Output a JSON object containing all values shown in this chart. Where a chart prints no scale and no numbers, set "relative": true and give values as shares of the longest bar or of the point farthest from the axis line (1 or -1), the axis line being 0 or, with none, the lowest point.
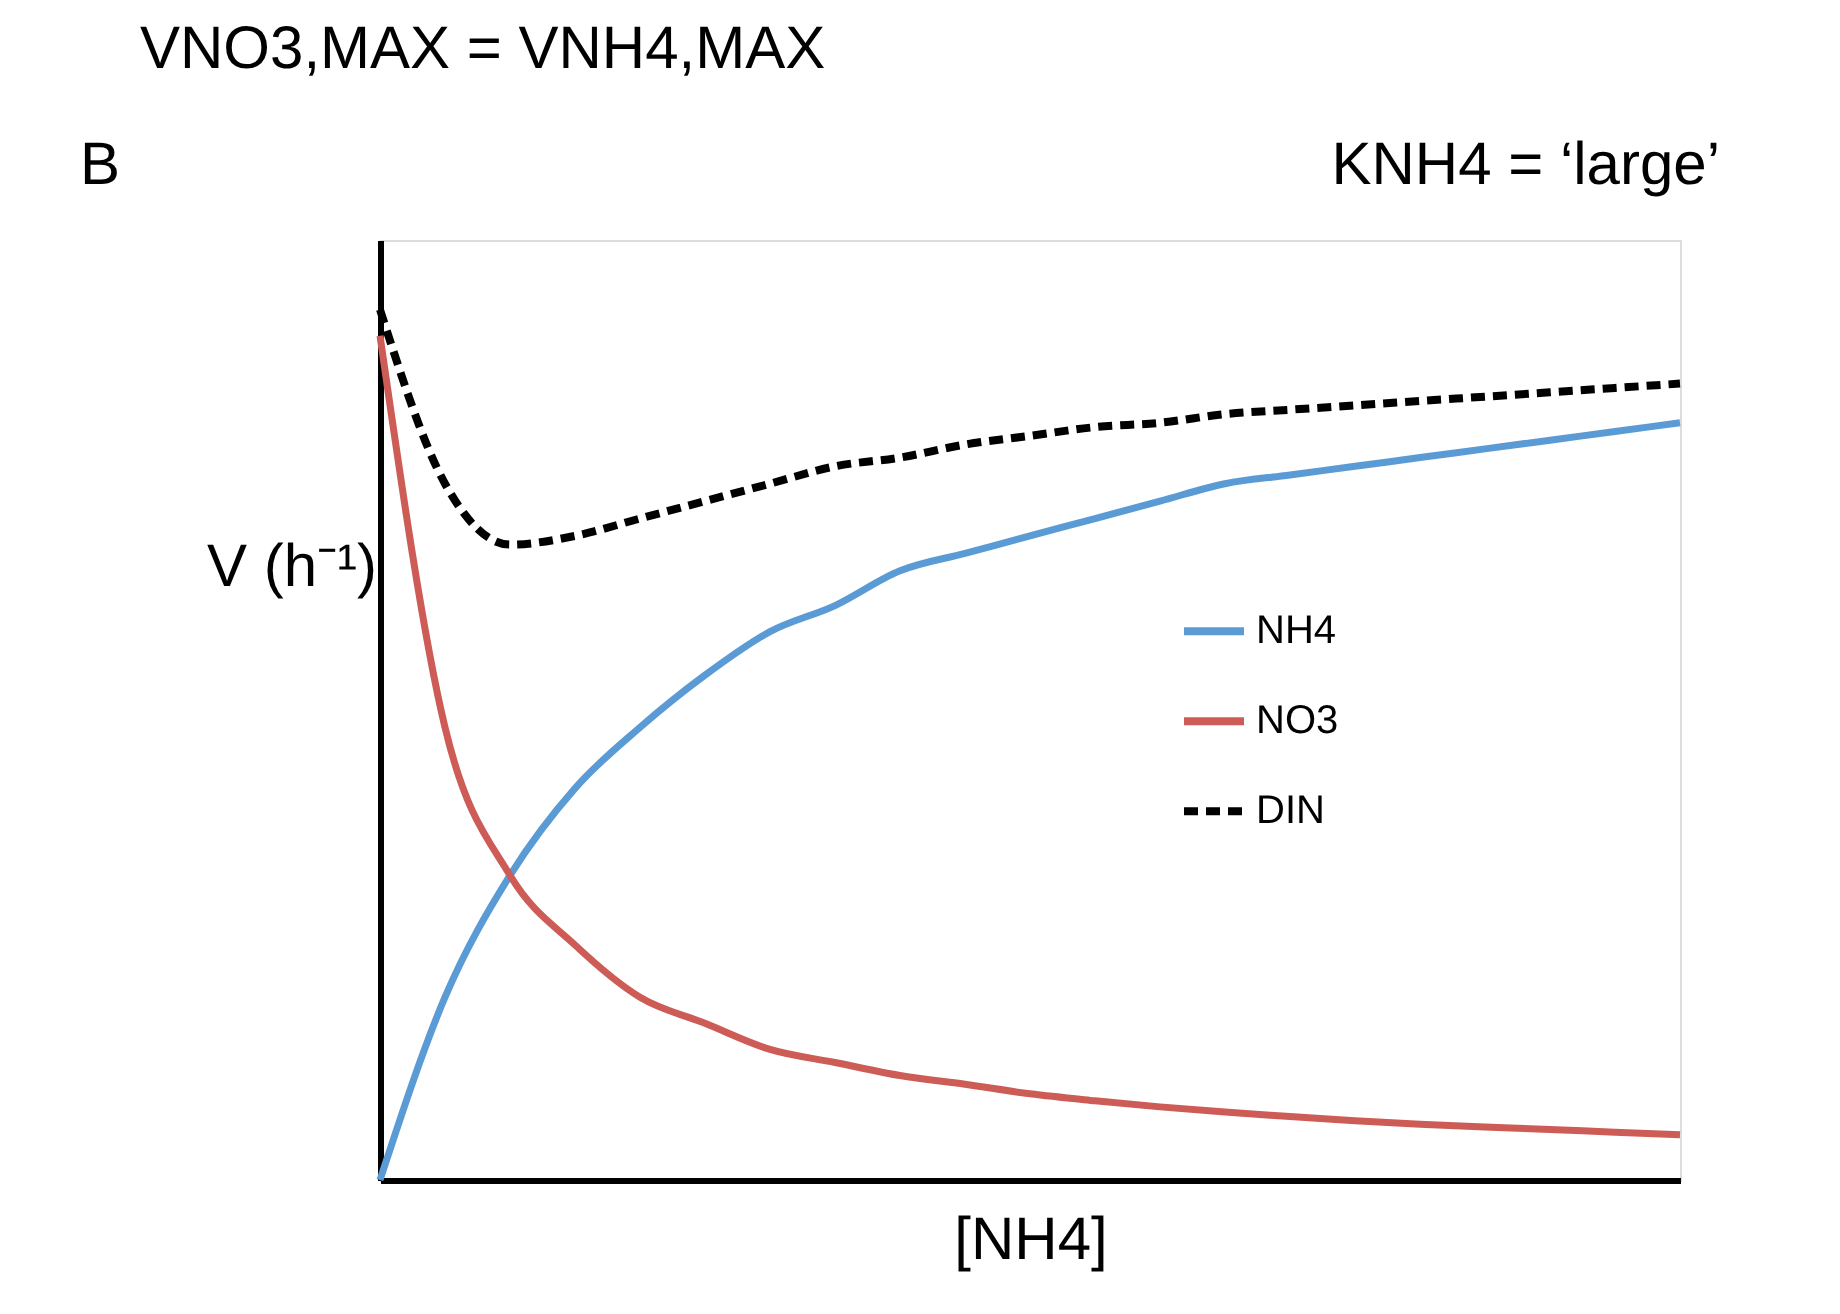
{
  "chart_data": {
    "type": "line",
    "relative": true,
    "title": "VNO3,MAX = VNH4,MAX",
    "xlabel": "[NH4]",
    "ylabel": "V (h⁻¹)",
    "annotations": [
      "B",
      "KNH4 = ‘large’"
    ],
    "legend": "right",
    "categories": [
      null,
      null,
      null,
      null,
      null,
      null,
      null,
      null,
      null,
      null,
      null,
      null,
      null,
      null,
      null,
      null,
      null,
      null,
      null,
      null,
      null
    ],
    "series": [
      {
        "name": "NH4",
        "color": "#5b9bd5",
        "line_style": "solid",
        "values": [
          0,
          0.21,
          0.35,
          0.45,
          0.52,
          0.58,
          0.63,
          0.66,
          0.7,
          0.72,
          0.74,
          0.76,
          0.78,
          0.8,
          0.81,
          0.82,
          0.83,
          0.84,
          0.85,
          0.86,
          0.87
        ]
      },
      {
        "name": "NO3",
        "color": "#cd5c57",
        "line_style": "solid",
        "values": [
          0.97,
          0.52,
          0.35,
          0.27,
          0.21,
          0.18,
          0.15,
          0.135,
          0.12,
          0.11,
          0.099,
          0.091,
          0.084,
          0.078,
          0.073,
          0.068,
          0.064,
          0.061,
          0.058,
          0.055,
          0.052
        ]
      },
      {
        "name": "DIN",
        "color": "#000000",
        "line_style": "dashed",
        "values": [
          1.0,
          0.8,
          0.73,
          0.74,
          0.76,
          0.78,
          0.8,
          0.82,
          0.83,
          0.845,
          0.855,
          0.865,
          0.87,
          0.88,
          0.885,
          0.89,
          0.895,
          0.9,
          0.905,
          0.91,
          0.915
        ]
      }
    ]
  }
}
